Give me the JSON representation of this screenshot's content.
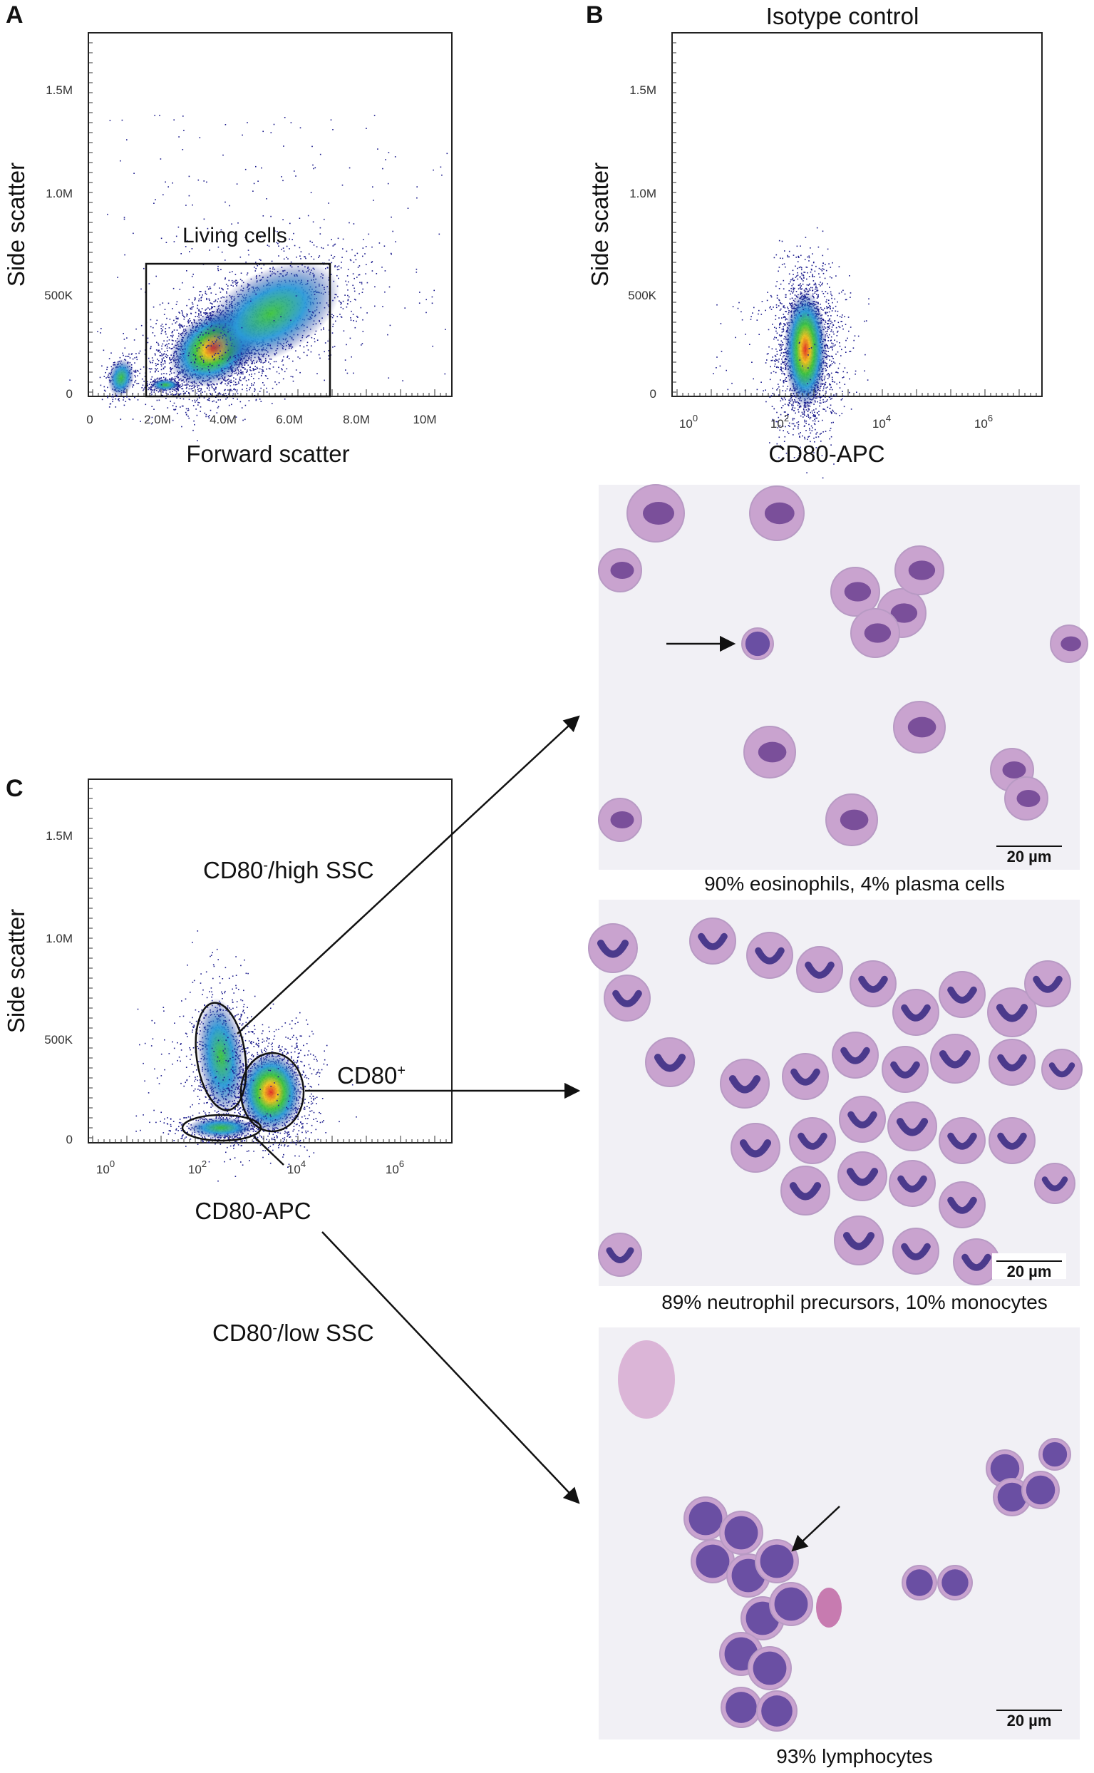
{
  "panels": {
    "A": {
      "letter": "A",
      "x_title": "Forward scatter",
      "y_title": "Side scatter",
      "x_ticks": [
        "0",
        "2.0M",
        "4.0M",
        "6.0M",
        "8.0M",
        "10M"
      ],
      "y_ticks": [
        "0",
        "500K",
        "1.0M",
        "1.5M"
      ],
      "gate_label": "Living cells"
    },
    "B": {
      "letter": "B",
      "title": "Isotype control",
      "x_title": "CD80-APC",
      "y_title": "Side scatter",
      "x_ticks": [
        "10",
        "10",
        "10",
        "10"
      ],
      "x_exps": [
        "0",
        "2",
        "4",
        "6"
      ],
      "y_ticks": [
        "0",
        "500K",
        "1.0M",
        "1.5M"
      ]
    },
    "C": {
      "letter": "C",
      "x_title": "CD80-APC",
      "y_title": "Side scatter",
      "x_ticks": [
        "10",
        "10",
        "10",
        "10"
      ],
      "x_exps": [
        "0",
        "2",
        "4",
        "6"
      ],
      "y_ticks": [
        "0",
        "500K",
        "1.0M",
        "1.5M"
      ],
      "gate_high": {
        "base": "CD80",
        "sup": "-",
        "rest": "/high SSC"
      },
      "gate_pos": {
        "base": "CD80",
        "sup": "+"
      },
      "gate_low": {
        "base": "CD80",
        "sup": "-",
        "rest": "/low SSC"
      }
    }
  },
  "micrographs": [
    {
      "caption": "90% eosinophils, 4% plasma cells",
      "scale": "20 µm"
    },
    {
      "caption": "89% neutrophil precursors, 10% monocytes",
      "scale": "20 µm"
    },
    {
      "caption": "93% lymphocytes",
      "scale": "20 µm"
    }
  ],
  "colors": {
    "density_low": "#1a1a8c",
    "density_mid": "#2a9ad8",
    "density_high": "#3cc43c",
    "density_peak": "#e52b1f",
    "micro_bg": "#f1f0f5",
    "cell_nucleus": "#4b3a8c",
    "cell_cytoplasm": "#c9a3cf"
  }
}
